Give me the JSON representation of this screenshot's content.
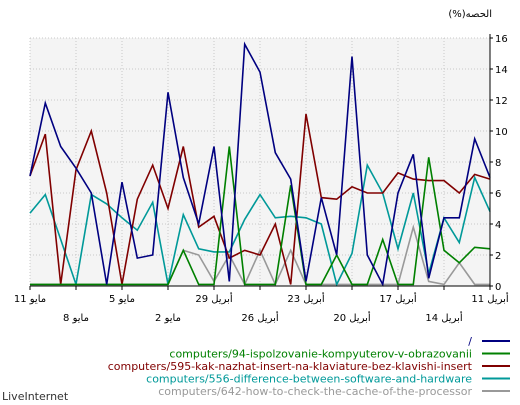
{
  "chart_data": {
    "type": "line",
    "y_axis_label": "(%)الحصه",
    "ylim": [
      0,
      16
    ],
    "yticks": [
      "0",
      "2",
      "4",
      "6",
      "8",
      "10",
      "12",
      "14",
      "16"
    ],
    "x_count": 31,
    "x_ticks_row1": [
      {
        "i": 0,
        "label": "11 مايو"
      },
      {
        "i": 6,
        "label": "5 مايو"
      },
      {
        "i": 12,
        "label": "29 أبريل"
      },
      {
        "i": 18,
        "label": "23 أبريل"
      },
      {
        "i": 24,
        "label": "17 أبريل"
      },
      {
        "i": 30,
        "label": "11 أبريل"
      }
    ],
    "x_ticks_row2": [
      {
        "i": 3,
        "label": "8 مايو"
      },
      {
        "i": 9,
        "label": "2 مايو"
      },
      {
        "i": 15,
        "label": "26 أبريل"
      },
      {
        "i": 21,
        "label": "20 أبريل"
      },
      {
        "i": 27,
        "label": "14 أبريل"
      }
    ],
    "grid": true,
    "legend_position": "bottom-right",
    "series": [
      {
        "name": "/",
        "color": "#000080",
        "values": [
          7.1,
          11.8,
          9.0,
          7.6,
          6.0,
          0.1,
          6.7,
          1.8,
          2.0,
          12.5,
          7.0,
          4.0,
          9.0,
          0.3,
          15.6,
          13.8,
          8.6,
          6.9,
          0.3,
          5.7,
          2.0,
          14.8,
          2.0,
          0.1,
          6.0,
          8.5,
          0.5,
          4.4,
          4.4,
          9.5,
          7.0
        ]
      },
      {
        "name": "computers/94-ispolzovanie-kompyuterov-v-obrazovanii",
        "color": "#008000",
        "values": [
          0.1,
          0.1,
          0.1,
          0.1,
          0.1,
          0.1,
          0.1,
          0.1,
          0.1,
          0.1,
          2.3,
          0.1,
          0.1,
          9.0,
          0.1,
          0.1,
          0.1,
          6.5,
          0.1,
          0.1,
          2.0,
          0.1,
          0.1,
          3.0,
          0.1,
          0.1,
          8.3,
          2.3,
          1.5,
          2.5,
          2.4
        ]
      },
      {
        "name": "computers/595-kak-nazhat-insert-na-klaviature-bez-klavishi-insert",
        "color": "#800000",
        "values": [
          7.1,
          9.8,
          0.1,
          7.5,
          10.0,
          6.0,
          0.1,
          5.6,
          7.8,
          5.0,
          9.0,
          3.8,
          4.5,
          1.8,
          2.3,
          2.0,
          4.0,
          0.1,
          11.1,
          5.7,
          5.6,
          6.4,
          6.0,
          6.0,
          7.3,
          6.9,
          6.8,
          6.8,
          6.0,
          7.2,
          6.9
        ]
      },
      {
        "name": "computers/556-difference-between-software-and-hardware",
        "color": "#009999",
        "values": [
          4.7,
          5.9,
          3.0,
          0.1,
          5.9,
          5.3,
          4.4,
          3.6,
          5.4,
          0.1,
          4.6,
          2.4,
          2.2,
          2.2,
          4.3,
          5.9,
          4.4,
          4.5,
          4.4,
          4.0,
          0.1,
          2.1,
          7.8,
          6.0,
          2.4,
          6.0,
          0.8,
          4.4,
          2.8,
          7.0,
          4.8
        ]
      },
      {
        "name": "computers/642-how-to-check-the-cache-of-the-processor",
        "color": "#999999",
        "values": [
          0.1,
          0.1,
          0.1,
          0.1,
          0.1,
          0.1,
          0.1,
          0.1,
          0.1,
          0.1,
          2.3,
          2.0,
          0.3,
          2.0,
          0.1,
          2.3,
          0.1,
          2.3,
          0.1,
          0.1,
          0.1,
          0.1,
          0.1,
          0.1,
          0.1,
          3.8,
          0.3,
          0.1,
          1.5,
          0.1,
          0.1
        ]
      }
    ]
  },
  "brand": "LiveInternet"
}
